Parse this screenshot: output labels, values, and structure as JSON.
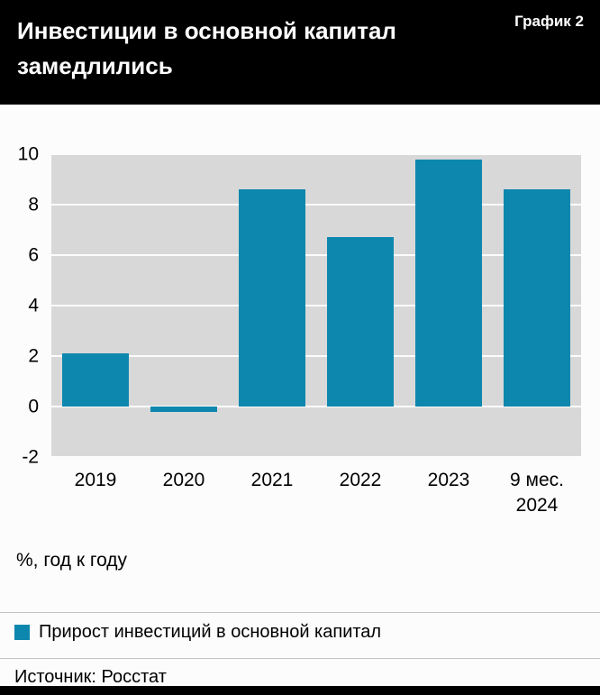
{
  "header": {
    "title": "Инвестиции в основной капитал\nзамедлились",
    "corner_label": "График 2"
  },
  "chart_data": {
    "type": "bar",
    "title": "Инвестиции в основной капитал замедлились",
    "categories": [
      "2019",
      "2020",
      "2021",
      "2022",
      "2023",
      "9 мес.\n2024"
    ],
    "values": [
      2.1,
      -0.2,
      8.6,
      6.7,
      9.8,
      8.6
    ],
    "xlabel": "",
    "ylabel": "%, год к году",
    "ylim": [
      -2,
      10
    ],
    "yticks": [
      -2,
      0,
      2,
      4,
      6,
      8,
      10
    ],
    "grid": true,
    "legend_position": "bottom",
    "bar_color": "#0e87ae",
    "plot_background": "#d8d8d8",
    "legend": [
      "Прирост инвестиций в основной капитал"
    ]
  },
  "footer": {
    "units_label": "%, год к году",
    "legend_label": "Прирост инвестиций в основной капитал",
    "source": "Источник: Росстат"
  }
}
